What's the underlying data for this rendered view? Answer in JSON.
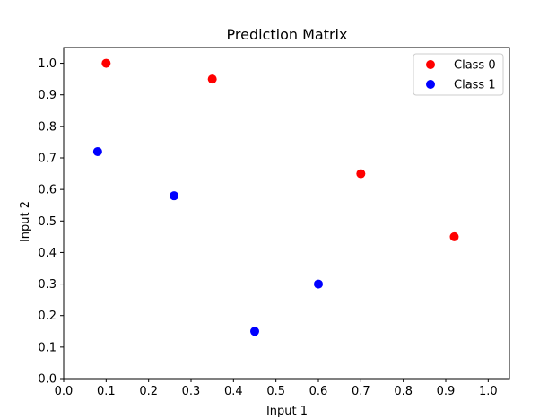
{
  "chart_data": {
    "type": "scatter",
    "title": "Prediction Matrix",
    "xlabel": "Input 1",
    "ylabel": "Input 2",
    "xlim": [
      0.0,
      1.05
    ],
    "ylim": [
      0.0,
      1.05
    ],
    "xticks": [
      0.0,
      0.1,
      0.2,
      0.3,
      0.4,
      0.5,
      0.6,
      0.7,
      0.8,
      0.9,
      1.0
    ],
    "yticks": [
      0.0,
      0.1,
      0.2,
      0.3,
      0.4,
      0.5,
      0.6,
      0.7,
      0.8,
      0.9,
      1.0
    ],
    "grid": false,
    "legend_position": "top-right",
    "series": [
      {
        "name": "Class 0",
        "color": "#ff0000",
        "points": [
          {
            "x": 0.1,
            "y": 1.0
          },
          {
            "x": 0.35,
            "y": 0.95
          },
          {
            "x": 0.7,
            "y": 0.65
          },
          {
            "x": 0.92,
            "y": 0.45
          }
        ]
      },
      {
        "name": "Class 1",
        "color": "#0000ff",
        "points": [
          {
            "x": 0.08,
            "y": 0.72
          },
          {
            "x": 0.26,
            "y": 0.58
          },
          {
            "x": 0.45,
            "y": 0.15
          },
          {
            "x": 0.6,
            "y": 0.3
          }
        ]
      }
    ]
  }
}
